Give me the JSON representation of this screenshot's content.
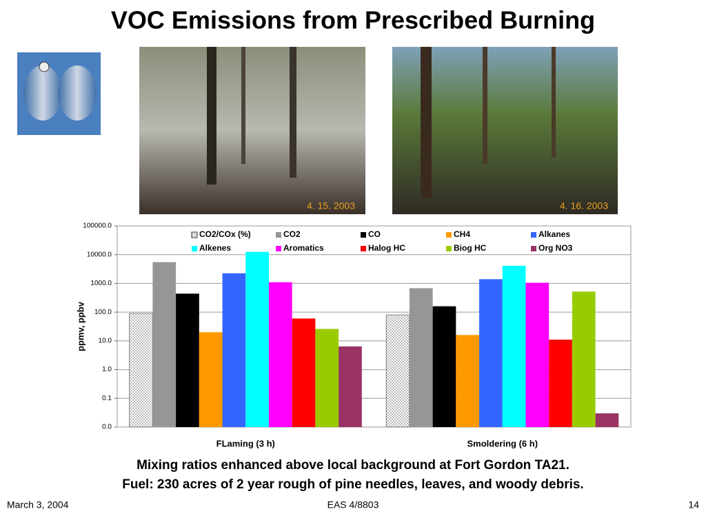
{
  "title": "VOC Emissions from Prescribed Burning",
  "photos": [
    {
      "date": "4. 15. 2003"
    },
    {
      "date": "4. 16. 2003"
    }
  ],
  "chart_data": {
    "type": "bar",
    "categories": [
      "FLaming (3 h)",
      "Smoldering (6 h)"
    ],
    "y_label": "ppmv, ppbv",
    "log_scale": true,
    "grid": true,
    "legend": "top",
    "ylim": [
      0.01,
      100000
    ],
    "yticks": [
      {
        "value": 0.01,
        "label": "0.0"
      },
      0.1,
      {
        "value": 1,
        "label": "1.0"
      },
      {
        "value": 10,
        "label": "10.0"
      },
      {
        "value": 100,
        "label": "100.0"
      },
      {
        "value": 1000,
        "label": "1000.0"
      },
      {
        "value": 10000,
        "label": "10000.0"
      },
      {
        "value": 100000,
        "label": "100000.0"
      }
    ],
    "series": [
      {
        "name": "CO2/COx (%)",
        "color": "#ffffff",
        "fill_pattern": "dots",
        "values": [
          90,
          80
        ]
      },
      {
        "name": "CO2",
        "color": "#969696",
        "values": [
          5500,
          680
        ]
      },
      {
        "name": "CO",
        "color": "#000000",
        "values": [
          440,
          160
        ]
      },
      {
        "name": "CH4",
        "color": "#ff9900",
        "values": [
          20,
          16
        ]
      },
      {
        "name": "Alkanes",
        "color": "#3366ff",
        "values": [
          2250,
          1400
        ]
      },
      {
        "name": "Alkenes",
        "color": "#00ffff",
        "values": [
          12500,
          4100
        ]
      },
      {
        "name": "Aromatics",
        "color": "#ff00ff",
        "values": [
          1100,
          1050
        ]
      },
      {
        "name": "Halog HC",
        "color": "#ff0000",
        "values": [
          60,
          11
        ]
      },
      {
        "name": "Biog HC",
        "color": "#99cc00",
        "values": [
          26,
          520
        ]
      },
      {
        "name": "Org NO3",
        "color": "#993366",
        "values": [
          6.4,
          0.03
        ]
      }
    ]
  },
  "captions": [
    "Mixing ratios enhanced above local background at Fort Gordon TA21.",
    "Fuel: 230 acres of 2 year rough of pine needles, leaves, and woody debris."
  ],
  "footer": {
    "date": "March 3, 2004",
    "course": "EAS 4/8803",
    "page": "14"
  }
}
